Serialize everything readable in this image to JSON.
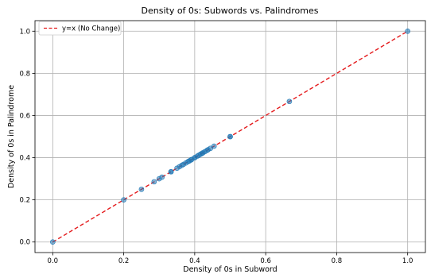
{
  "chart_data": {
    "type": "scatter",
    "title": "Density of 0s: Subwords vs. Palindromes",
    "xlabel": "Density of 0s in Subword",
    "ylabel": "Density of 0s in Palindrome",
    "xlim": [
      -0.05,
      1.05
    ],
    "ylim": [
      -0.05,
      1.05
    ],
    "xticks": [
      "0.0",
      "0.2",
      "0.4",
      "0.6",
      "0.8",
      "1.0"
    ],
    "yticks": [
      "0.0",
      "0.2",
      "0.4",
      "0.6",
      "0.8",
      "1.0"
    ],
    "grid": true,
    "legend": {
      "position": "top-left",
      "entries": [
        "y=x (No Change)"
      ]
    },
    "series": [
      {
        "type": "scatter",
        "color": "#1f77b4",
        "x": [
          0.0,
          0.2,
          0.25,
          0.2857,
          0.3,
          0.3077,
          0.3333,
          0.3333,
          0.35,
          0.3571,
          0.3636,
          0.3684,
          0.375,
          0.381,
          0.3846,
          0.3889,
          0.3913,
          0.4,
          0.4,
          0.4074,
          0.4118,
          0.4167,
          0.4211,
          0.4231,
          0.4286,
          0.4348,
          0.4375,
          0.4444,
          0.4545,
          0.5,
          0.5,
          0.6667,
          1.0
        ],
        "y": [
          0.0,
          0.2,
          0.25,
          0.2857,
          0.3,
          0.3077,
          0.3333,
          0.3333,
          0.35,
          0.3571,
          0.3636,
          0.3684,
          0.375,
          0.381,
          0.3846,
          0.3889,
          0.3913,
          0.4,
          0.4,
          0.4074,
          0.4118,
          0.4167,
          0.4211,
          0.4231,
          0.4286,
          0.4348,
          0.4375,
          0.4444,
          0.4545,
          0.5,
          0.5,
          0.6667,
          1.0
        ]
      },
      {
        "type": "line",
        "name": "y=x (No Change)",
        "color": "#e41a1c",
        "style": "dashed",
        "x": [
          0.0,
          1.0
        ],
        "y": [
          0.0,
          1.0
        ]
      }
    ]
  }
}
